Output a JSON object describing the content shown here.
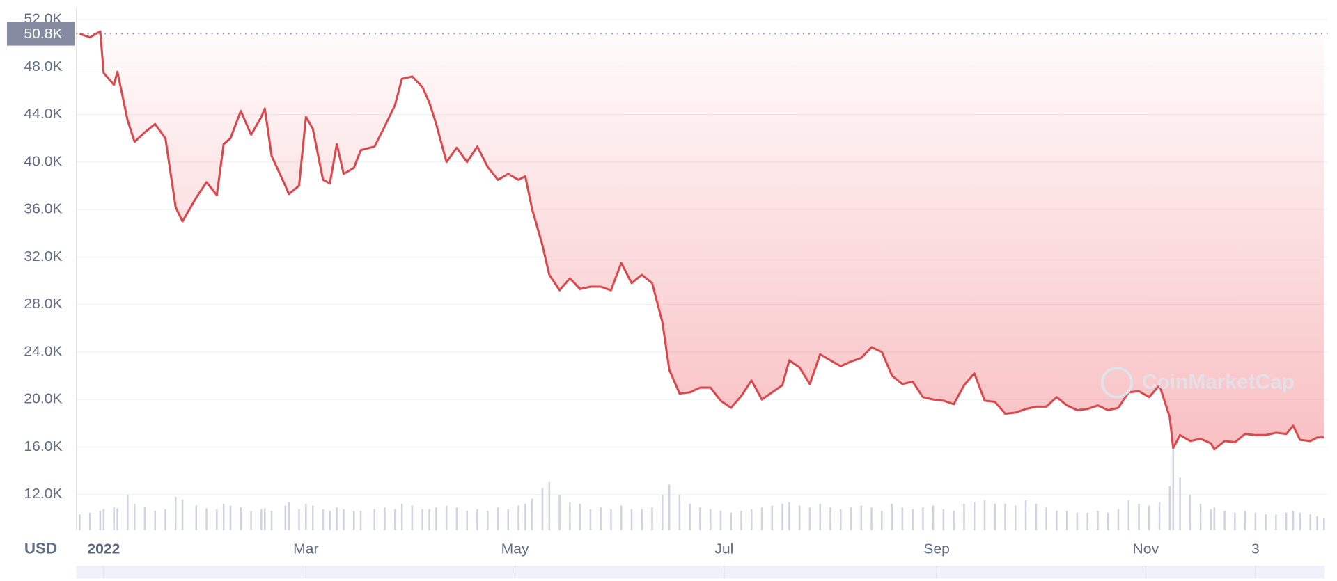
{
  "chart_data": {
    "type": "line",
    "currency_label": "USD",
    "watermark": "CoinMarketCap",
    "color": "#d94a4f",
    "x": [
      -6,
      -3,
      0,
      1,
      4,
      5,
      8,
      10,
      13,
      16,
      19,
      22,
      24,
      28,
      31,
      34,
      36,
      38,
      41,
      44,
      47,
      48,
      50,
      54,
      55,
      58,
      60,
      62,
      65,
      67,
      69,
      71,
      74,
      76,
      80,
      83,
      86,
      88,
      91,
      94,
      96,
      98,
      101,
      104,
      107,
      110,
      113,
      116,
      119,
      122,
      124,
      126,
      129,
      131,
      134,
      137,
      140,
      143,
      146,
      149,
      152,
      155,
      158,
      161,
      164,
      166,
      169,
      172,
      175,
      178,
      181,
      184,
      187,
      190,
      193,
      196,
      199,
      201,
      204,
      207,
      210,
      213,
      216,
      219,
      222,
      225,
      228,
      231,
      234,
      237,
      240,
      243,
      246,
      249,
      252,
      255,
      258,
      261,
      264,
      267,
      270,
      273,
      276,
      279,
      282,
      285,
      288,
      291,
      294,
      297,
      300,
      303,
      306,
      309,
      312,
      313,
      315,
      318,
      321,
      324,
      325,
      328,
      331,
      334,
      337,
      340,
      343,
      346,
      348,
      350,
      353,
      355,
      357
    ],
    "values": [
      50800,
      50500,
      51000,
      47500,
      46500,
      47600,
      43500,
      41700,
      42500,
      43200,
      42000,
      36200,
      35000,
      37000,
      38300,
      37200,
      41500,
      42000,
      44300,
      42300,
      43800,
      44500,
      40500,
      38000,
      37300,
      38000,
      43800,
      42800,
      38500,
      38200,
      41500,
      39000,
      39500,
      41000,
      41300,
      43000,
      44800,
      47000,
      47200,
      46300,
      45000,
      43200,
      40000,
      41200,
      40000,
      41300,
      39600,
      38500,
      39000,
      38500,
      38800,
      36000,
      33000,
      30500,
      29200,
      30200,
      29300,
      29500,
      29500,
      29200,
      31500,
      29800,
      30500,
      29800,
      26500,
      22500,
      20500,
      20600,
      21000,
      21000,
      19900,
      19300,
      20300,
      21600,
      20000,
      20600,
      21200,
      23300,
      22700,
      21300,
      23800,
      23300,
      22800,
      23200,
      23500,
      24400,
      24000,
      22000,
      21300,
      21500,
      20200,
      20000,
      19900,
      19600,
      21200,
      22200,
      19900,
      19800,
      18800,
      18900,
      19200,
      19400,
      19400,
      20200,
      19500,
      19100,
      19200,
      19500,
      19100,
      19300,
      20600,
      20700,
      20200,
      21200,
      18500,
      15900,
      17000,
      16500,
      16700,
      16300,
      15800,
      16500,
      16400,
      17100,
      17000,
      17000,
      17200,
      17100,
      17800,
      16600,
      16500,
      16800,
      16800
    ],
    "volume": [
      18,
      20,
      22,
      24,
      26,
      25,
      40,
      30,
      27,
      22,
      24,
      38,
      35,
      28,
      25,
      24,
      30,
      28,
      26,
      22,
      24,
      25,
      22,
      28,
      32,
      24,
      30,
      28,
      24,
      22,
      26,
      24,
      22,
      22,
      24,
      26,
      24,
      30,
      28,
      24,
      24,
      26,
      28,
      26,
      22,
      24,
      22,
      26,
      24,
      28,
      30,
      36,
      48,
      55,
      40,
      32,
      30,
      24,
      26,
      24,
      28,
      24,
      24,
      26,
      40,
      52,
      40,
      30,
      26,
      24,
      22,
      20,
      22,
      24,
      26,
      28,
      30,
      32,
      28,
      26,
      30,
      26,
      24,
      26,
      28,
      26,
      22,
      30,
      26,
      24,
      26,
      28,
      24,
      22,
      30,
      32,
      34,
      30,
      30,
      28,
      34,
      30,
      26,
      22,
      22,
      20,
      20,
      22,
      20,
      24,
      34,
      30,
      28,
      32,
      50,
      92,
      60,
      40,
      30,
      24,
      26,
      22,
      20,
      22,
      20,
      18,
      18,
      20,
      22,
      20,
      18,
      16,
      14
    ],
    "reference_line": {
      "value": 50800,
      "label": "50.8K"
    },
    "xlim": [
      -7,
      357
    ],
    "xticks": [
      {
        "value": 1,
        "label": "2022"
      },
      {
        "value": 60,
        "label": "Mar"
      },
      {
        "value": 121,
        "label": "May"
      },
      {
        "value": 182,
        "label": "Jul"
      },
      {
        "value": 244,
        "label": "Sep"
      },
      {
        "value": 305,
        "label": "Nov"
      },
      {
        "value": 337,
        "label": "3"
      }
    ],
    "ylim": [
      9000,
      53000
    ],
    "yticks": [
      {
        "value": 12000,
        "label": "12.0K"
      },
      {
        "value": 16000,
        "label": "16.0K"
      },
      {
        "value": 20000,
        "label": "20.0K"
      },
      {
        "value": 24000,
        "label": "24.0K"
      },
      {
        "value": 28000,
        "label": "28.0K"
      },
      {
        "value": 32000,
        "label": "32.0K"
      },
      {
        "value": 36000,
        "label": "36.0K"
      },
      {
        "value": 40000,
        "label": "40.0K"
      },
      {
        "value": 44000,
        "label": "44.0K"
      },
      {
        "value": 48000,
        "label": "48.0K"
      },
      {
        "value": 52000,
        "label": "52.0K"
      }
    ],
    "grid": true
  }
}
